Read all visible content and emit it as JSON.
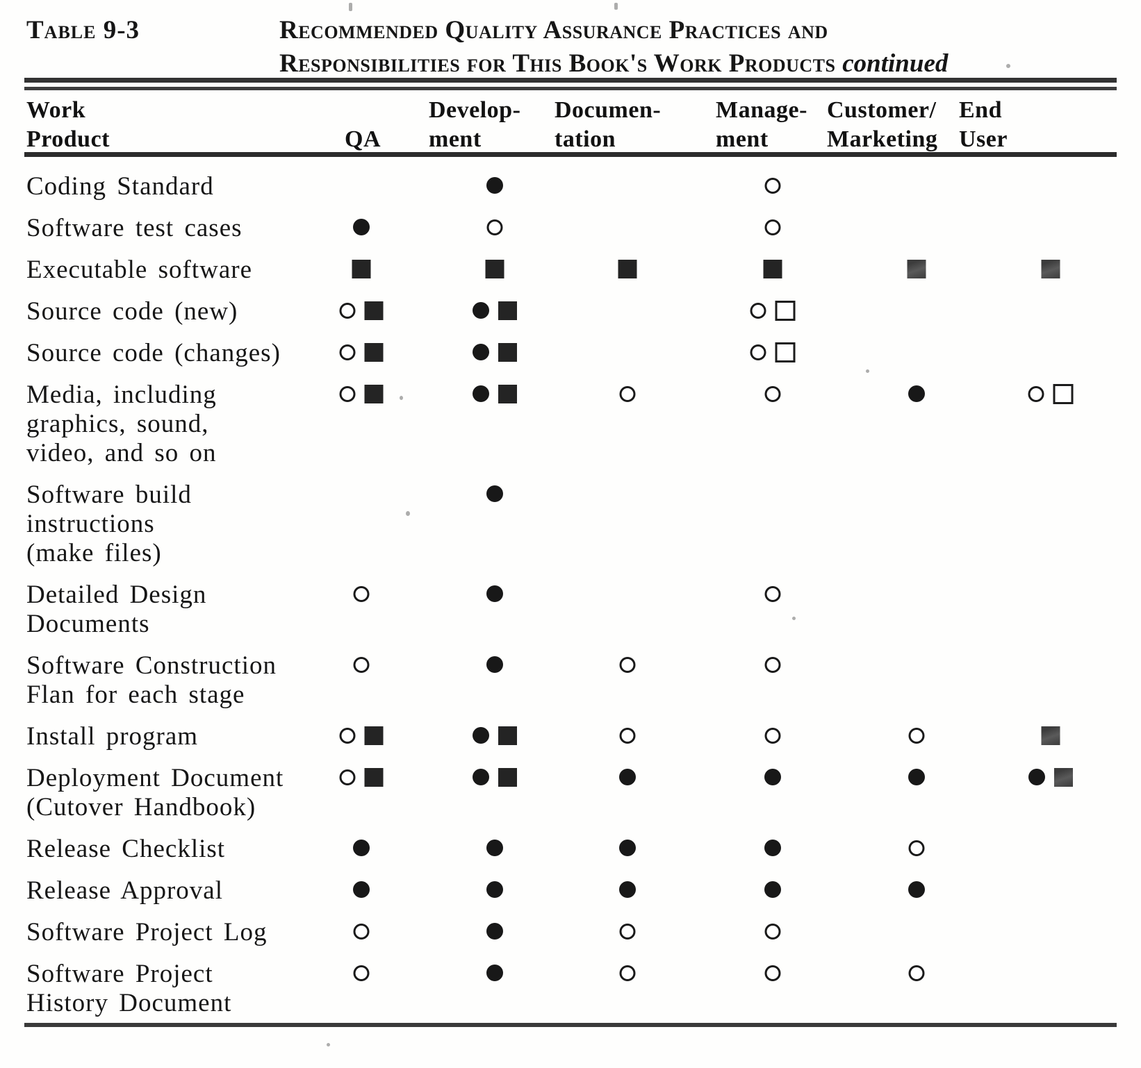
{
  "document": {
    "table_label": "Table 9-3",
    "title_line1": "Recommended Quality Assurance Practices and",
    "title_line2": "Responsibilities for This Book's Work Products",
    "title_continued": "continued"
  },
  "columns": [
    {
      "id": "work",
      "label": "Work\nProduct"
    },
    {
      "id": "qa",
      "label": "QA"
    },
    {
      "id": "dev",
      "label": "Develop-\nment"
    },
    {
      "id": "doc",
      "label": "Documen-\ntation"
    },
    {
      "id": "mgmt",
      "label": "Manage-\nment"
    },
    {
      "id": "cust",
      "label": "Customer/\nMarketing"
    },
    {
      "id": "end",
      "label": "End\nUser"
    }
  ],
  "rows": [
    {
      "label": "Coding Standard",
      "cells": {
        "dev": [
          "filled-circle"
        ],
        "mgmt": [
          "open-circle"
        ]
      }
    },
    {
      "label": "Software test cases",
      "cells": {
        "qa": [
          "filled-circle"
        ],
        "dev": [
          "open-circle"
        ],
        "mgmt": [
          "open-circle"
        ]
      }
    },
    {
      "label": "Executable software",
      "cells": {
        "qa": [
          "filled-square"
        ],
        "dev": [
          "filled-square"
        ],
        "doc": [
          "filled-square"
        ],
        "mgmt": [
          "filled-square"
        ],
        "cust": [
          "gray-square"
        ],
        "end": [
          "gray-square"
        ]
      }
    },
    {
      "label": "Source code (new)",
      "cells": {
        "qa": [
          "open-circle",
          "filled-square"
        ],
        "dev": [
          "filled-circle",
          "filled-square"
        ],
        "mgmt": [
          "open-circle",
          "open-square"
        ]
      }
    },
    {
      "label": "Source code (changes)",
      "cells": {
        "qa": [
          "open-circle",
          "filled-square"
        ],
        "dev": [
          "filled-circle",
          "filled-square"
        ],
        "mgmt": [
          "open-circle",
          "open-square"
        ]
      }
    },
    {
      "label": "Media, including\ngraphics, sound,\nvideo, and so on",
      "cells": {
        "qa": [
          "open-circle",
          "filled-square"
        ],
        "dev": [
          "filled-circle",
          "filled-square"
        ],
        "doc": [
          "open-circle"
        ],
        "mgmt": [
          "open-circle"
        ],
        "cust": [
          "filled-circle"
        ],
        "end": [
          "open-circle",
          "open-square"
        ]
      }
    },
    {
      "label": "Software build\ninstructions\n(make files)",
      "cells": {
        "dev": [
          "filled-circle"
        ]
      }
    },
    {
      "label": "Detailed Design\nDocuments",
      "cells": {
        "qa": [
          "open-circle"
        ],
        "dev": [
          "filled-circle"
        ],
        "mgmt": [
          "open-circle"
        ]
      }
    },
    {
      "label": "Software Construction\nFlan for each stage",
      "cells": {
        "qa": [
          "open-circle"
        ],
        "dev": [
          "filled-circle"
        ],
        "doc": [
          "open-circle"
        ],
        "mgmt": [
          "open-circle"
        ]
      }
    },
    {
      "label": "Install program",
      "cells": {
        "qa": [
          "open-circle",
          "filled-square"
        ],
        "dev": [
          "filled-circle",
          "filled-square"
        ],
        "doc": [
          "open-circle"
        ],
        "mgmt": [
          "open-circle"
        ],
        "cust": [
          "open-circle"
        ],
        "end": [
          "gray-square"
        ]
      }
    },
    {
      "label": "Deployment Document\n(Cutover Handbook)",
      "cells": {
        "qa": [
          "open-circle",
          "filled-square"
        ],
        "dev": [
          "filled-circle",
          "filled-square"
        ],
        "doc": [
          "filled-circle"
        ],
        "mgmt": [
          "filled-circle"
        ],
        "cust": [
          "filled-circle"
        ],
        "end": [
          "filled-circle",
          "gray-square"
        ]
      }
    },
    {
      "label": "Release Checklist",
      "cells": {
        "qa": [
          "filled-circle"
        ],
        "dev": [
          "filled-circle"
        ],
        "doc": [
          "filled-circle"
        ],
        "mgmt": [
          "filled-circle"
        ],
        "cust": [
          "open-circle"
        ]
      }
    },
    {
      "label": "Release Approval",
      "cells": {
        "qa": [
          "filled-circle"
        ],
        "dev": [
          "filled-circle"
        ],
        "doc": [
          "filled-circle"
        ],
        "mgmt": [
          "filled-circle"
        ],
        "cust": [
          "filled-circle"
        ]
      }
    },
    {
      "label": "Software Project Log",
      "cells": {
        "qa": [
          "open-circle"
        ],
        "dev": [
          "filled-circle"
        ],
        "doc": [
          "open-circle"
        ],
        "mgmt": [
          "open-circle"
        ]
      }
    },
    {
      "label": "Software Project\nHistory Document",
      "cells": {
        "qa": [
          "open-circle"
        ],
        "dev": [
          "filled-circle"
        ],
        "doc": [
          "open-circle"
        ],
        "mgmt": [
          "open-circle"
        ],
        "cust": [
          "open-circle"
        ]
      }
    }
  ]
}
